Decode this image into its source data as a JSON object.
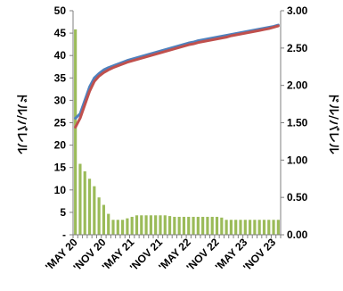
{
  "chart_data": {
    "type": "bar+line",
    "title": "",
    "ylabel_left": "ドル/バレル",
    "ylabel_right": "ドル/バレル",
    "ylim_left": [
      0,
      50
    ],
    "ylim_right": [
      0,
      3
    ],
    "yticks_left": [
      "-",
      "5",
      "10",
      "15",
      "20",
      "25",
      "30",
      "35",
      "40",
      "45",
      "50"
    ],
    "yticks_right": [
      "0.00",
      "0.50",
      "1.00",
      "1.50",
      "2.00",
      "2.50",
      "3.00"
    ],
    "xticks": [
      "MAY 20",
      "NOV 20",
      "MAY 21",
      "NOV 21",
      "MAY 22",
      "NOV 22",
      "MAY 23",
      "NOV 23"
    ],
    "x": [
      "MAY 20",
      "JUN 20",
      "JUL 20",
      "AUG 20",
      "SEP 20",
      "OCT 20",
      "NOV 20",
      "DEC 20",
      "JAN 21",
      "FEB 21",
      "MAR 21",
      "APR 21",
      "MAY 21",
      "JUN 21",
      "JUL 21",
      "AUG 21",
      "SEP 21",
      "OCT 21",
      "NOV 21",
      "DEC 21",
      "JAN 22",
      "FEB 22",
      "MAR 22",
      "APR 22",
      "MAY 22",
      "JUN 22",
      "JUL 22",
      "AUG 22",
      "SEP 22",
      "OCT 22",
      "NOV 22",
      "DEC 22",
      "JAN 23",
      "FEB 23",
      "MAR 23",
      "APR 23",
      "MAY 23",
      "JUN 23",
      "JUL 23",
      "AUG 23",
      "SEP 23",
      "OCT 23",
      "NOV 23",
      "DEC 23"
    ],
    "series": [
      {
        "axis": "right",
        "type": "bar",
        "color": "#9bbb59",
        "values": [
          2.75,
          0.95,
          0.85,
          0.75,
          0.65,
          0.5,
          0.4,
          0.28,
          0.2,
          0.2,
          0.2,
          0.22,
          0.24,
          0.26,
          0.26,
          0.26,
          0.26,
          0.26,
          0.26,
          0.26,
          0.25,
          0.24,
          0.24,
          0.24,
          0.24,
          0.24,
          0.24,
          0.24,
          0.24,
          0.24,
          0.24,
          0.23,
          0.2,
          0.2,
          0.2,
          0.2,
          0.2,
          0.2,
          0.2,
          0.2,
          0.2,
          0.2,
          0.2,
          0.2
        ]
      },
      {
        "axis": "left",
        "type": "line",
        "color": "#4f81bd",
        "values": [
          26.0,
          27.0,
          30.0,
          33.0,
          35.0,
          36.0,
          36.8,
          37.3,
          37.7,
          38.1,
          38.5,
          38.9,
          39.2,
          39.5,
          39.8,
          40.1,
          40.4,
          40.7,
          41.0,
          41.3,
          41.6,
          41.9,
          42.2,
          42.5,
          42.8,
          43.0,
          43.3,
          43.5,
          43.7,
          43.9,
          44.1,
          44.3,
          44.5,
          44.7,
          44.9,
          45.1,
          45.3,
          45.5,
          45.7,
          45.9,
          46.1,
          46.3,
          46.5,
          46.8
        ]
      },
      {
        "axis": "left",
        "type": "line",
        "color": "#c0504d",
        "values": [
          24.0,
          26.0,
          29.0,
          32.0,
          34.2,
          35.4,
          36.2,
          36.8,
          37.3,
          37.7,
          38.1,
          38.5,
          38.8,
          39.1,
          39.4,
          39.7,
          40.0,
          40.3,
          40.6,
          40.9,
          41.2,
          41.5,
          41.8,
          42.1,
          42.4,
          42.6,
          42.9,
          43.1,
          43.3,
          43.5,
          43.7,
          43.9,
          44.1,
          44.4,
          44.6,
          44.8,
          45.0,
          45.2,
          45.4,
          45.6,
          45.8,
          46.0,
          46.3,
          46.6
        ]
      }
    ]
  }
}
